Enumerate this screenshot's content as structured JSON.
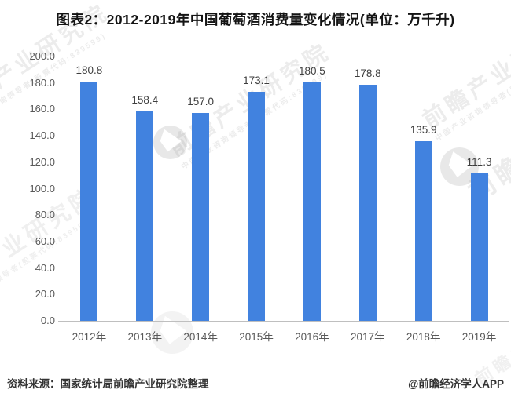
{
  "title": "图表2：2012-2019年中国葡萄酒消费量变化情况(单位：万千升)",
  "footer": {
    "source": "资料来源：国家统计局前瞻产业研究院整理",
    "credit": "@前瞻经济学人APP"
  },
  "watermark": {
    "text": "前瞻产业研究院",
    "subtext": "中国产业咨询领导者(股票代码:839599)",
    "logo": "qianzhan-logo"
  },
  "colors": {
    "bar": "#4182DF",
    "axis_line": "#BFBFBF",
    "tick_text": "#595959",
    "value_label_text": "#3D3D3D",
    "title_text": "#141414",
    "footer_text": "#333333"
  },
  "chart_data": {
    "type": "bar",
    "title": "图表2：2012-2019年中国葡萄酒消费量变化情况(单位：万千升)",
    "categories": [
      "2012年",
      "2013年",
      "2014年",
      "2015年",
      "2016年",
      "2017年",
      "2018年",
      "2019年"
    ],
    "values": [
      180.8,
      158.4,
      157.0,
      173.1,
      180.5,
      178.8,
      135.9,
      111.3
    ],
    "value_labels": [
      "180.8",
      "158.4",
      "157.0",
      "173.1",
      "180.5",
      "178.8",
      "135.9",
      "111.3"
    ],
    "xlabel": "",
    "ylabel": "",
    "unit": "万千升",
    "ylim": [
      0,
      200
    ],
    "ytick_labels": [
      "0.0",
      "20.0",
      "40.0",
      "60.0",
      "80.0",
      "100.0",
      "120.0",
      "140.0",
      "160.0",
      "180.0",
      "200.0"
    ],
    "grid": false,
    "legend": null
  }
}
